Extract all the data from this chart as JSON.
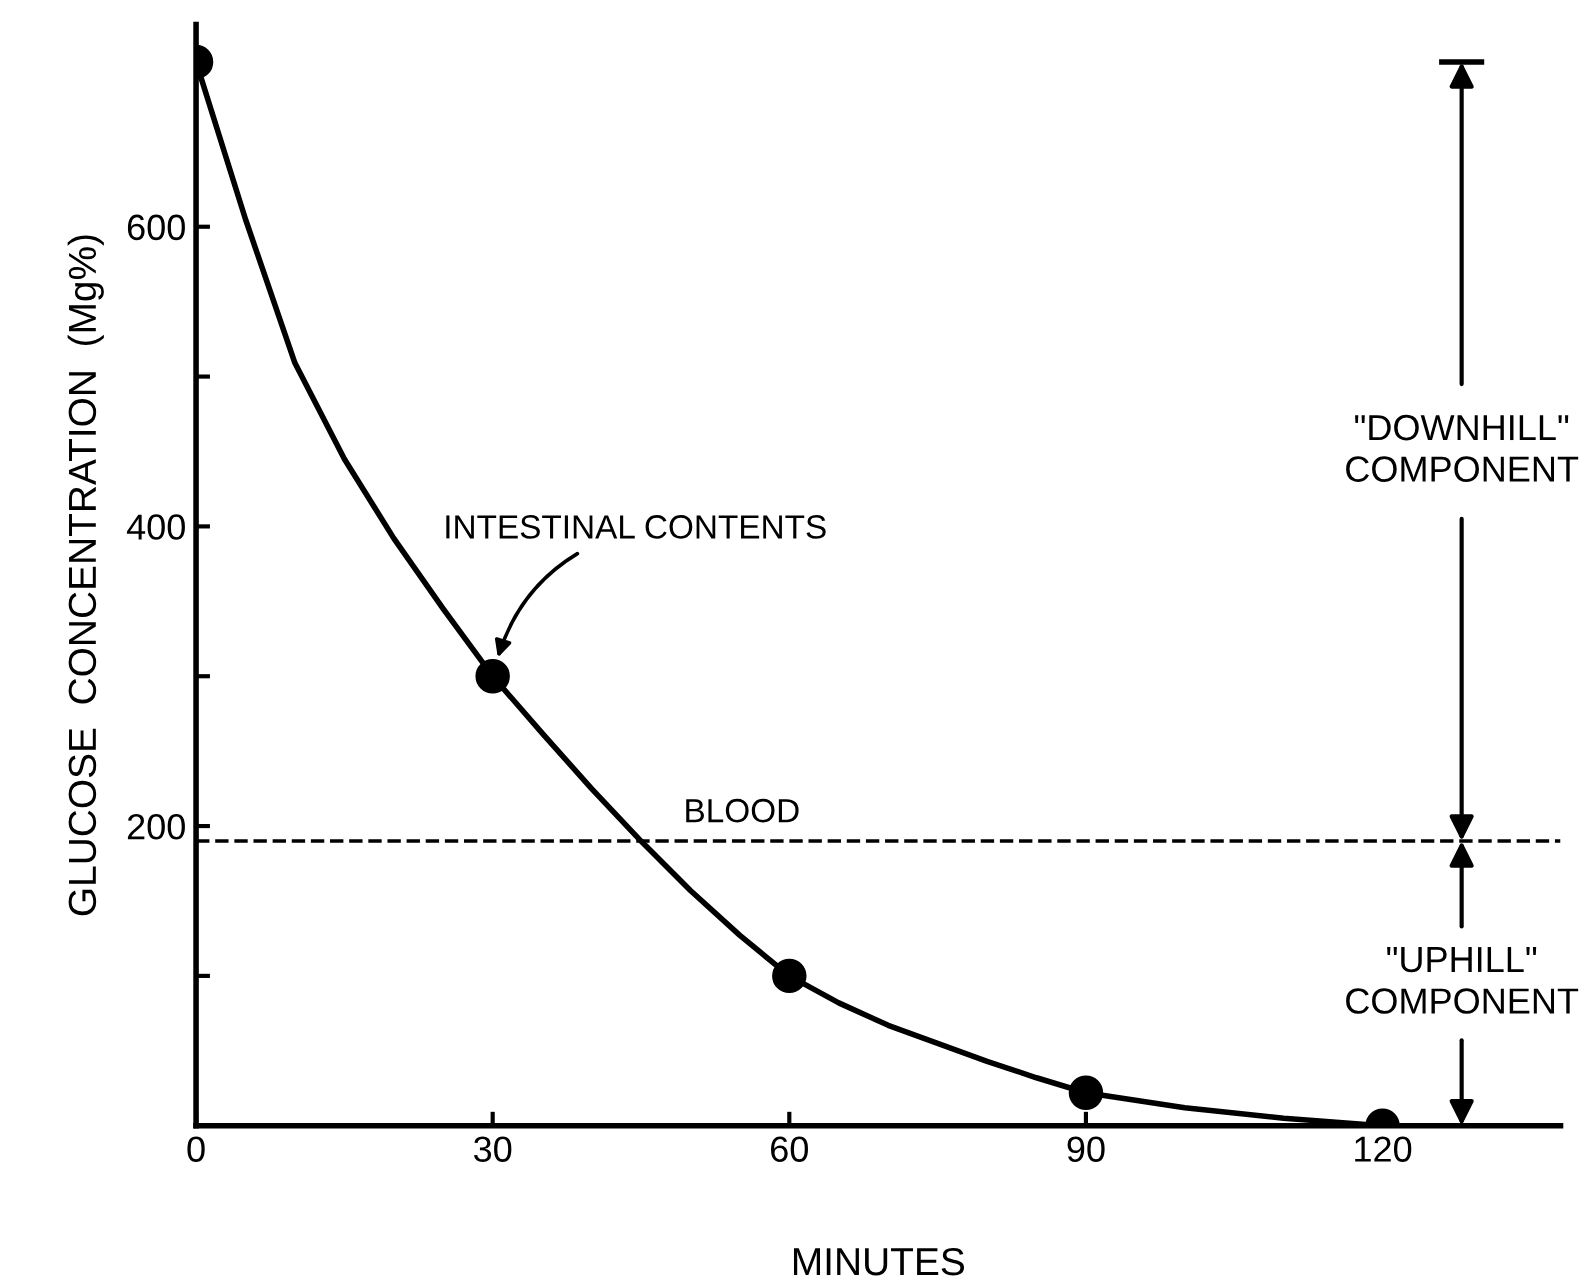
{
  "chart_data": {
    "type": "line",
    "xlabel": "MINUTES",
    "ylabel": "GLUCOSE  CONCENTRATION  (Mg%)",
    "series": [
      {
        "name": "INTESTINAL CONTENTS",
        "color": "#000000",
        "marker": "none",
        "x": [
          0,
          5,
          10,
          15,
          20,
          25,
          30,
          35,
          40,
          45,
          50,
          55,
          60,
          65,
          70,
          75,
          80,
          85,
          90,
          100,
          110,
          120
        ],
        "values": [
          710,
          605,
          509,
          445,
          392,
          345,
          300,
          262,
          225,
          190,
          157,
          127,
          100,
          82,
          67,
          55,
          43,
          32,
          22,
          12,
          5,
          0
        ]
      },
      {
        "type": "scatter",
        "color": "#000000",
        "marker": "circle",
        "x": [
          0,
          30,
          60,
          90,
          120
        ],
        "values": [
          710,
          300,
          100,
          22,
          0
        ]
      }
    ],
    "xlim": [
      0,
      138
    ],
    "ylim": [
      0,
      735
    ],
    "xticks": [
      0,
      30,
      60,
      90,
      120
    ],
    "yticks": [
      {
        "value": 100,
        "label": null
      },
      200,
      {
        "value": 300,
        "label": null
      },
      400,
      {
        "value": 500,
        "label": null
      },
      600
    ],
    "line_style": "solid",
    "grid": false,
    "legend": false,
    "ref_lines": [
      {
        "axis": "y",
        "value": 190,
        "label": "BLOOD",
        "color": "#000000",
        "line_style": "dashed"
      }
    ],
    "annotations": [
      {
        "text": "\"DOWNHILL\"\nCOMPONENT",
        "x": 128,
        "y": 190
      },
      {
        "text": "\"UPHILL\"\nCOMPONENT",
        "x": 128,
        "y": 190
      }
    ]
  }
}
